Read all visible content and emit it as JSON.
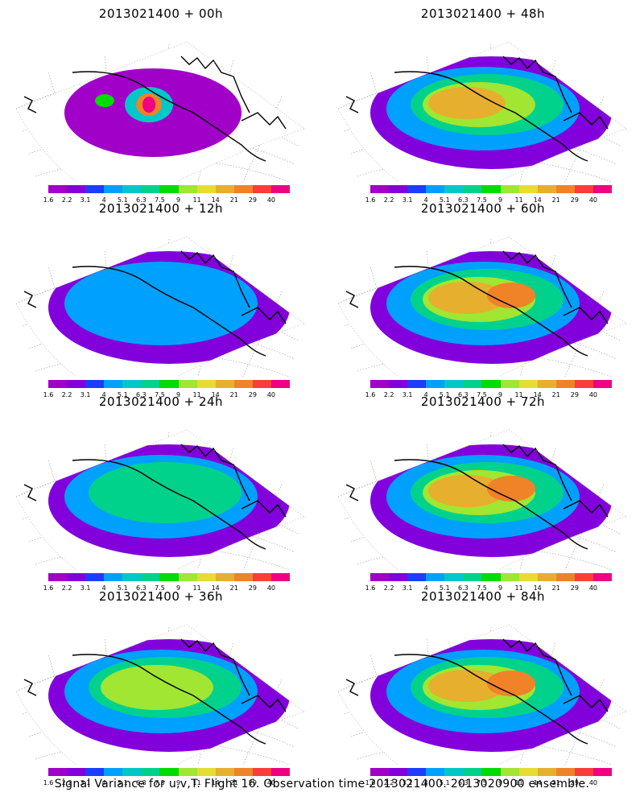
{
  "caption": "Signal Variance for u,v,T. Flight 16. Observation time 2013021400. 2013020900 ensemble.",
  "colorbar": {
    "labels": [
      "1.6",
      "2.2",
      "3.1",
      "4",
      "5.1",
      "6.3",
      "7.5",
      "9",
      "11",
      "14",
      "21",
      "29",
      "40"
    ],
    "colors": [
      "#a000c8",
      "#8200dc",
      "#1e3cff",
      "#00a0ff",
      "#00c8c8",
      "#00d28c",
      "#00dc00",
      "#a0e632",
      "#e6dc32",
      "#e6af2d",
      "#f08228",
      "#fa3c3c",
      "#f00082"
    ]
  },
  "panels": [
    {
      "title": "2013021400 + 00h",
      "intensity": 0
    },
    {
      "title": "2013021400 + 48h",
      "intensity": 4
    },
    {
      "title": "2013021400 + 12h",
      "intensity": 1
    },
    {
      "title": "2013021400 + 60h",
      "intensity": 5
    },
    {
      "title": "2013021400 + 24h",
      "intensity": 2
    },
    {
      "title": "2013021400 + 72h",
      "intensity": 5
    },
    {
      "title": "2013021400 + 36h",
      "intensity": 3
    },
    {
      "title": "2013021400 + 84h",
      "intensity": 6
    }
  ]
}
